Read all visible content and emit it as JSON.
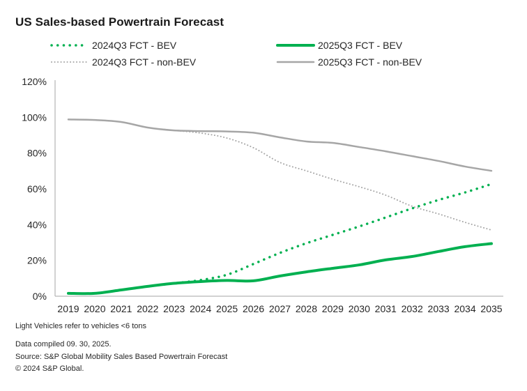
{
  "chart_data": {
    "type": "line",
    "title": "US Sales-based Powertrain Forecast",
    "xlabel": "",
    "ylabel": "",
    "x": [
      2019,
      2020,
      2021,
      2022,
      2023,
      2024,
      2025,
      2026,
      2027,
      2028,
      2029,
      2030,
      2031,
      2032,
      2033,
      2034,
      2035
    ],
    "ylim": [
      0,
      120
    ],
    "yticks": [
      0,
      20,
      40,
      60,
      80,
      100,
      120
    ],
    "ytick_labels": [
      "0%",
      "20%",
      "40%",
      "60%",
      "80%",
      "100%",
      "120%"
    ],
    "grid": false,
    "legend_position": "top",
    "series": [
      {
        "name": "2024Q3 FCT - BEV",
        "color": "#00b050",
        "style": "dotted",
        "values": [
          1.6,
          1.6,
          3.5,
          5.5,
          7.2,
          9.0,
          12.0,
          18.0,
          24.2,
          29.6,
          34.3,
          39.0,
          44.0,
          49.1,
          53.8,
          58.0,
          62.7
        ]
      },
      {
        "name": "2025Q3 FCT - BEV",
        "color": "#00b050",
        "style": "solid",
        "values": [
          1.6,
          1.6,
          3.5,
          5.5,
          7.2,
          8.2,
          8.8,
          8.6,
          11.3,
          13.6,
          15.6,
          17.5,
          20.3,
          22.2,
          25.0,
          27.7,
          29.4
        ]
      },
      {
        "name": "2024Q3 FCT - non-BEV",
        "color": "#a6a6a6",
        "style": "dotted",
        "values": [
          98.8,
          98.5,
          97.4,
          94.3,
          92.7,
          91.2,
          88.4,
          83.0,
          74.8,
          70.1,
          65.4,
          61.2,
          56.5,
          50.3,
          46.0,
          41.3,
          37.0
        ]
      },
      {
        "name": "2025Q3 FCT - non-BEV",
        "color": "#a6a6a6",
        "style": "solid",
        "values": [
          98.8,
          98.5,
          97.4,
          94.3,
          92.7,
          92.3,
          92.1,
          91.4,
          88.8,
          86.5,
          85.7,
          83.4,
          81.0,
          78.3,
          75.6,
          72.5,
          70.1
        ]
      }
    ]
  },
  "footnotes": {
    "note": "Light Vehicles refer to vehicles <6 tons",
    "compiled": "Data compiled 09. 30, 2025.",
    "source": "Source: S&P Global Mobility Sales Based Powertrain Forecast",
    "copyright": "© 2024 S&P Global."
  }
}
